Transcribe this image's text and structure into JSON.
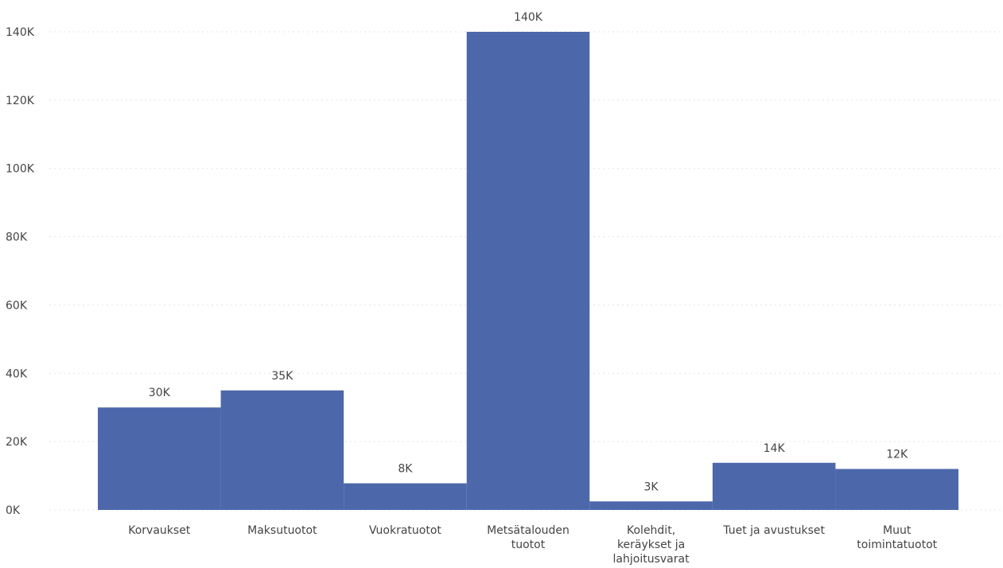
{
  "chart_data": {
    "type": "bar",
    "categories": [
      [
        "Korvaukset"
      ],
      [
        "Maksutuotot"
      ],
      [
        "Vuokratuotot"
      ],
      [
        "Metsätalouden",
        "tuotot"
      ],
      [
        "Kolehdit,",
        "keräykset ja",
        "lahjoitusvarat"
      ],
      [
        "Tuet ja avustukset"
      ],
      [
        "Muut",
        "toimintatuotot"
      ]
    ],
    "values": [
      30000,
      35000,
      7800,
      140000,
      2500,
      13800,
      12000
    ],
    "data_labels": [
      "30K",
      "35K",
      "8K",
      "140K",
      "3K",
      "14K",
      "12K"
    ],
    "ylim": [
      0,
      140000
    ],
    "yticks": [
      0,
      20000,
      40000,
      60000,
      80000,
      100000,
      120000,
      140000
    ],
    "ytick_labels": [
      "0K",
      "20K",
      "40K",
      "60K",
      "80K",
      "100K",
      "120K",
      "140K"
    ],
    "grid": true,
    "bar_color": "#4c68ab"
  }
}
